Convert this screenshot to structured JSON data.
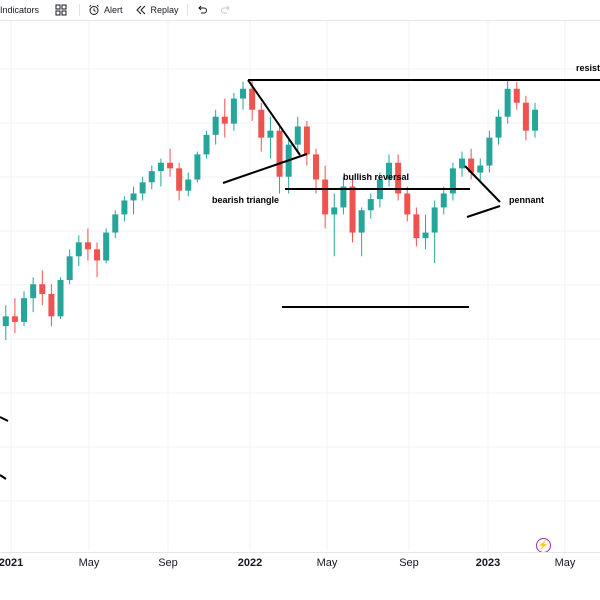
{
  "toolbar": {
    "indicators_label": "Indicators",
    "alert_label": "Alert",
    "replay_label": "Replay"
  },
  "icons": {
    "templates": "grid-icon",
    "alert": "alarm-clock-icon",
    "replay": "rewind-icon",
    "undo": "undo-icon",
    "redo": "redo-icon",
    "events": "lightning-icon"
  },
  "chart_data": {
    "type": "candlestick",
    "x_ticks": [
      "2021",
      "May",
      "Sep",
      "2022",
      "May",
      "Sep",
      "2023",
      "May"
    ],
    "annotations": [
      "bearish triangle",
      "bullish reversal",
      "pennant",
      "resist"
    ],
    "series": [
      {
        "x": "2020-12-10",
        "o": 500,
        "h": 515,
        "l": 480,
        "c": 505
      },
      {
        "x": "2020-12-24",
        "o": 505,
        "h": 520,
        "l": 495,
        "c": 512
      },
      {
        "x": "2021-01-07",
        "o": 512,
        "h": 525,
        "l": 500,
        "c": 508
      },
      {
        "x": "2021-01-21",
        "o": 508,
        "h": 530,
        "l": 505,
        "c": 525
      },
      {
        "x": "2021-02-04",
        "o": 525,
        "h": 540,
        "l": 515,
        "c": 535
      },
      {
        "x": "2021-02-18",
        "o": 535,
        "h": 545,
        "l": 520,
        "c": 528
      },
      {
        "x": "2021-03-04",
        "o": 528,
        "h": 535,
        "l": 505,
        "c": 512
      },
      {
        "x": "2021-03-18",
        "o": 512,
        "h": 540,
        "l": 510,
        "c": 538
      },
      {
        "x": "2021-04-01",
        "o": 538,
        "h": 560,
        "l": 535,
        "c": 555
      },
      {
        "x": "2021-04-15",
        "o": 555,
        "h": 570,
        "l": 548,
        "c": 565
      },
      {
        "x": "2021-04-29",
        "o": 565,
        "h": 575,
        "l": 552,
        "c": 560
      },
      {
        "x": "2021-05-13",
        "o": 560,
        "h": 565,
        "l": 540,
        "c": 552
      },
      {
        "x": "2021-05-27",
        "o": 552,
        "h": 575,
        "l": 550,
        "c": 572
      },
      {
        "x": "2021-06-10",
        "o": 572,
        "h": 588,
        "l": 568,
        "c": 585
      },
      {
        "x": "2021-06-24",
        "o": 585,
        "h": 598,
        "l": 580,
        "c": 595
      },
      {
        "x": "2021-07-08",
        "o": 595,
        "h": 605,
        "l": 585,
        "c": 600
      },
      {
        "x": "2021-07-22",
        "o": 600,
        "h": 612,
        "l": 595,
        "c": 608
      },
      {
        "x": "2021-08-05",
        "o": 608,
        "h": 620,
        "l": 603,
        "c": 616
      },
      {
        "x": "2021-08-19",
        "o": 616,
        "h": 625,
        "l": 605,
        "c": 622
      },
      {
        "x": "2021-09-02",
        "o": 622,
        "h": 632,
        "l": 612,
        "c": 618
      },
      {
        "x": "2021-09-16",
        "o": 618,
        "h": 622,
        "l": 595,
        "c": 602
      },
      {
        "x": "2021-09-30",
        "o": 602,
        "h": 615,
        "l": 598,
        "c": 610
      },
      {
        "x": "2021-10-14",
        "o": 610,
        "h": 630,
        "l": 608,
        "c": 628
      },
      {
        "x": "2021-10-28",
        "o": 628,
        "h": 645,
        "l": 625,
        "c": 642
      },
      {
        "x": "2021-11-11",
        "o": 642,
        "h": 660,
        "l": 635,
        "c": 655
      },
      {
        "x": "2021-11-25",
        "o": 655,
        "h": 668,
        "l": 640,
        "c": 650
      },
      {
        "x": "2021-12-09",
        "o": 650,
        "h": 672,
        "l": 645,
        "c": 668
      },
      {
        "x": "2021-12-23",
        "o": 668,
        "h": 680,
        "l": 660,
        "c": 675
      },
      {
        "x": "2022-01-06",
        "o": 675,
        "h": 682,
        "l": 652,
        "c": 660
      },
      {
        "x": "2022-01-20",
        "o": 660,
        "h": 665,
        "l": 630,
        "c": 640
      },
      {
        "x": "2022-02-03",
        "o": 640,
        "h": 655,
        "l": 625,
        "c": 645
      },
      {
        "x": "2022-02-17",
        "o": 645,
        "h": 650,
        "l": 600,
        "c": 612
      },
      {
        "x": "2022-03-03",
        "o": 612,
        "h": 640,
        "l": 600,
        "c": 635
      },
      {
        "x": "2022-03-17",
        "o": 635,
        "h": 655,
        "l": 630,
        "c": 648
      },
      {
        "x": "2022-03-31",
        "o": 648,
        "h": 652,
        "l": 620,
        "c": 628
      },
      {
        "x": "2022-04-14",
        "o": 628,
        "h": 632,
        "l": 600,
        "c": 610
      },
      {
        "x": "2022-04-28",
        "o": 610,
        "h": 620,
        "l": 575,
        "c": 585
      },
      {
        "x": "2022-05-12",
        "o": 585,
        "h": 600,
        "l": 555,
        "c": 590
      },
      {
        "x": "2022-05-26",
        "o": 590,
        "h": 612,
        "l": 585,
        "c": 605
      },
      {
        "x": "2022-06-09",
        "o": 605,
        "h": 610,
        "l": 565,
        "c": 572
      },
      {
        "x": "2022-06-23",
        "o": 572,
        "h": 590,
        "l": 555,
        "c": 588
      },
      {
        "x": "2022-07-07",
        "o": 588,
        "h": 600,
        "l": 582,
        "c": 596
      },
      {
        "x": "2022-07-21",
        "o": 596,
        "h": 615,
        "l": 590,
        "c": 610
      },
      {
        "x": "2022-08-04",
        "o": 610,
        "h": 628,
        "l": 605,
        "c": 622
      },
      {
        "x": "2022-08-18",
        "o": 622,
        "h": 628,
        "l": 595,
        "c": 600
      },
      {
        "x": "2022-09-01",
        "o": 600,
        "h": 605,
        "l": 580,
        "c": 585
      },
      {
        "x": "2022-09-15",
        "o": 585,
        "h": 590,
        "l": 562,
        "c": 568
      },
      {
        "x": "2022-09-29",
        "o": 568,
        "h": 585,
        "l": 560,
        "c": 572
      },
      {
        "x": "2022-10-13",
        "o": 572,
        "h": 595,
        "l": 550,
        "c": 590
      },
      {
        "x": "2022-10-27",
        "o": 590,
        "h": 605,
        "l": 585,
        "c": 600
      },
      {
        "x": "2022-11-10",
        "o": 600,
        "h": 622,
        "l": 595,
        "c": 618
      },
      {
        "x": "2022-11-24",
        "o": 618,
        "h": 630,
        "l": 612,
        "c": 625
      },
      {
        "x": "2022-12-08",
        "o": 625,
        "h": 632,
        "l": 610,
        "c": 615
      },
      {
        "x": "2022-12-22",
        "o": 615,
        "h": 625,
        "l": 608,
        "c": 620
      },
      {
        "x": "2023-01-05",
        "o": 620,
        "h": 645,
        "l": 615,
        "c": 640
      },
      {
        "x": "2023-01-19",
        "o": 640,
        "h": 660,
        "l": 635,
        "c": 655
      },
      {
        "x": "2023-02-02",
        "o": 655,
        "h": 682,
        "l": 650,
        "c": 675
      },
      {
        "x": "2023-02-16",
        "o": 675,
        "h": 680,
        "l": 660,
        "c": 665
      },
      {
        "x": "2023-03-02",
        "o": 665,
        "h": 670,
        "l": 638,
        "c": 645
      },
      {
        "x": "2023-03-16",
        "o": 645,
        "h": 665,
        "l": 640,
        "c": 660
      }
    ]
  }
}
